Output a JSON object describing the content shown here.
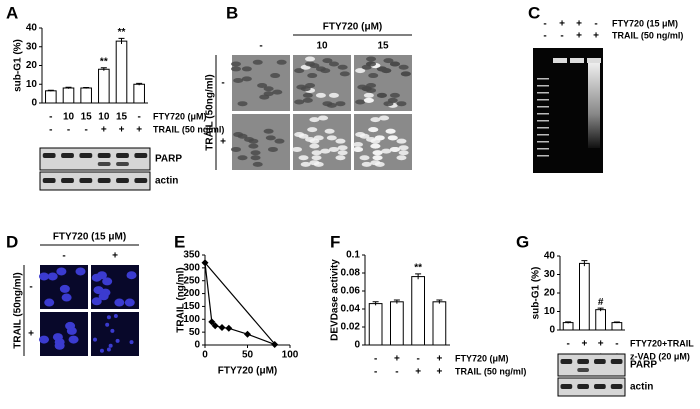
{
  "panel_labels": [
    "A",
    "B",
    "C",
    "D",
    "E",
    "F",
    "G"
  ],
  "chart_data": [
    {
      "type": "bar",
      "y_label": "sub-G1 (%)",
      "values": [
        6.5,
        8,
        8,
        18,
        33,
        10
      ],
      "errors": [
        0.3,
        0.4,
        0.3,
        0.8,
        1.5,
        0.5
      ],
      "significance": [
        null,
        null,
        null,
        "**",
        "**",
        null
      ],
      "color": "#ffffff",
      "ylim": [
        0,
        40
      ],
      "yticks": [
        0,
        10,
        20,
        30,
        40
      ],
      "treatment_rows": [
        {
          "label": "FTY720 (μM)",
          "values": [
            "-",
            "10",
            "15",
            "10",
            "15",
            "-"
          ]
        },
        {
          "label": "TRAIL (50 ng/ml)",
          "values": [
            "-",
            "-",
            "-",
            "+",
            "+",
            "+"
          ]
        }
      ]
    },
    {
      "type": "line",
      "x_label": "FTY720 (μM)",
      "y_label": "TRAIL (ng/ml)",
      "color": "#000000",
      "xlim": [
        0,
        100
      ],
      "xticks": [
        0,
        50,
        100
      ],
      "ylim": [
        0,
        350
      ],
      "yticks": [
        0,
        50,
        100,
        150,
        200,
        250,
        300,
        350
      ],
      "series": [
        {
          "x": [
            0,
            83
          ],
          "values": [
            320,
            0
          ]
        },
        {
          "x": [
            0,
            8,
            12,
            20,
            28,
            50,
            82
          ],
          "values": [
            320,
            90,
            75,
            68,
            65,
            42,
            2
          ],
          "marker": "diamond"
        }
      ]
    },
    {
      "type": "bar",
      "y_label": "DEVDase activity",
      "values": [
        0.046,
        0.048,
        0.076,
        0.048
      ],
      "errors": [
        0.002,
        0.002,
        0.003,
        0.002
      ],
      "significance": [
        null,
        null,
        "**",
        null
      ],
      "color": "#ffffff",
      "ylim": [
        0,
        0.1
      ],
      "yticks": [
        0,
        0.02,
        0.04,
        0.06,
        0.08,
        0.1
      ],
      "treatment_rows": [
        {
          "label": "FTY720 (μM)",
          "values": [
            "-",
            "+",
            "-",
            "+"
          ]
        },
        {
          "label": "TRAIL (50 ng/ml)",
          "values": [
            "-",
            "-",
            "+",
            "+"
          ]
        }
      ]
    },
    {
      "type": "bar",
      "y_label": "sub-G1 (%)",
      "values": [
        4,
        36,
        11,
        4
      ],
      "errors": [
        0.4,
        1.5,
        0.8,
        0.3
      ],
      "significance": [
        null,
        null,
        "#",
        null
      ],
      "color": "#ffffff",
      "ylim": [
        0,
        40
      ],
      "yticks": [
        0,
        10,
        20,
        30,
        40
      ],
      "treatment_rows": [
        {
          "label": "FTY720+TRAIL",
          "values": [
            "-",
            "+",
            "+",
            "-"
          ]
        },
        {
          "label": "z-VAD (20 μM)",
          "values": [
            "-",
            "-",
            "+",
            "+"
          ]
        }
      ]
    }
  ],
  "blots": {
    "A": [
      "PARP",
      "actin"
    ],
    "G": [
      "PARP",
      "actin"
    ]
  },
  "micrographs": {
    "B": {
      "title": "FTY720 (μM)",
      "columns": [
        "-",
        "10",
        "15"
      ],
      "row_title": "TRAIL (50ng/ml)",
      "rows": [
        "-",
        "+"
      ]
    },
    "D": {
      "title": "FTY720 (15 μM)",
      "columns": [
        "-",
        "+"
      ],
      "row_title": "TRAIL (50ng/ml)",
      "rows": [
        "-",
        "+"
      ]
    }
  },
  "gel": {
    "rows": [
      {
        "label": "FTY720 (15 μM)",
        "values": [
          "-",
          "+",
          "+",
          "-"
        ]
      },
      {
        "label": "TRAIL (50 ng/ml)",
        "values": [
          "-",
          "-",
          "+",
          "+"
        ]
      }
    ]
  }
}
